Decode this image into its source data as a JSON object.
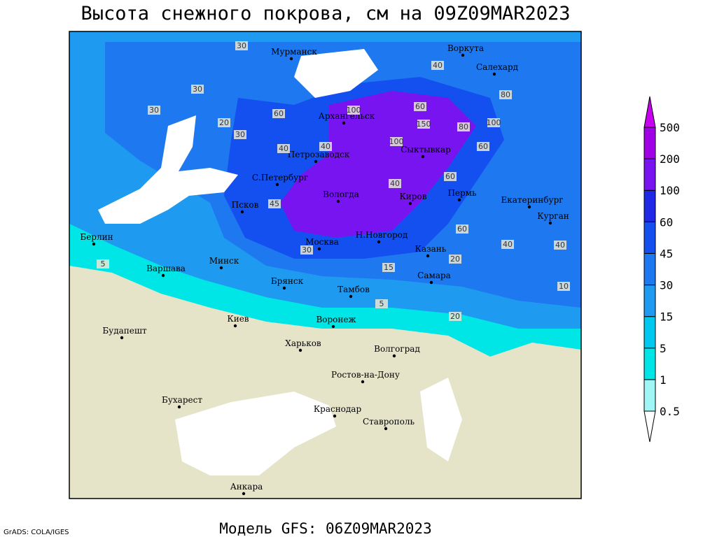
{
  "header": {
    "title": "Высота снежного покрова, см на 09Z09MAR2023"
  },
  "footer": {
    "model": "Модель GFS: 06Z09MAR2023",
    "credit": "GrADS: COLA/IGES"
  },
  "legend": {
    "levels": [
      0.5,
      1,
      5,
      15,
      30,
      45,
      60,
      100,
      200,
      500
    ],
    "colors": [
      "#ffffff",
      "#a0f5f5",
      "#00e6e6",
      "#00c8f0",
      "#1e9bf0",
      "#1e78f0",
      "#1450f0",
      "#1e28e6",
      "#7814f0",
      "#a000e6",
      "#c800f0"
    ]
  },
  "cities": [
    "Мурманск",
    "Воркута",
    "Салехард",
    "Архангельск",
    "Сыктывкар",
    "Петрозаводск",
    "С.Петербург",
    "Вологда",
    "Киров",
    "Пермь",
    "Екатеринбург",
    "Курган",
    "Псков",
    "Берлин",
    "Москва",
    "Н.Новгород",
    "Казань",
    "Варшава",
    "Минск",
    "Самара",
    "Брянск",
    "Тамбов",
    "Киев",
    "Воронеж",
    "Будапешт",
    "Харьков",
    "Волгоград",
    "Ростов-на-Дону",
    "Бухарест",
    "Краснодар",
    "Ставрополь",
    "Анкара"
  ],
  "contour_labels": [
    "30",
    "40",
    "30",
    "60",
    "100",
    "150",
    "100",
    "40",
    "60",
    "80",
    "100",
    "40",
    "60",
    "40",
    "20",
    "30",
    "60",
    "40",
    "5",
    "30",
    "20",
    "10",
    "5",
    "20",
    "40",
    "30",
    "60",
    "80",
    "45",
    "15"
  ]
}
